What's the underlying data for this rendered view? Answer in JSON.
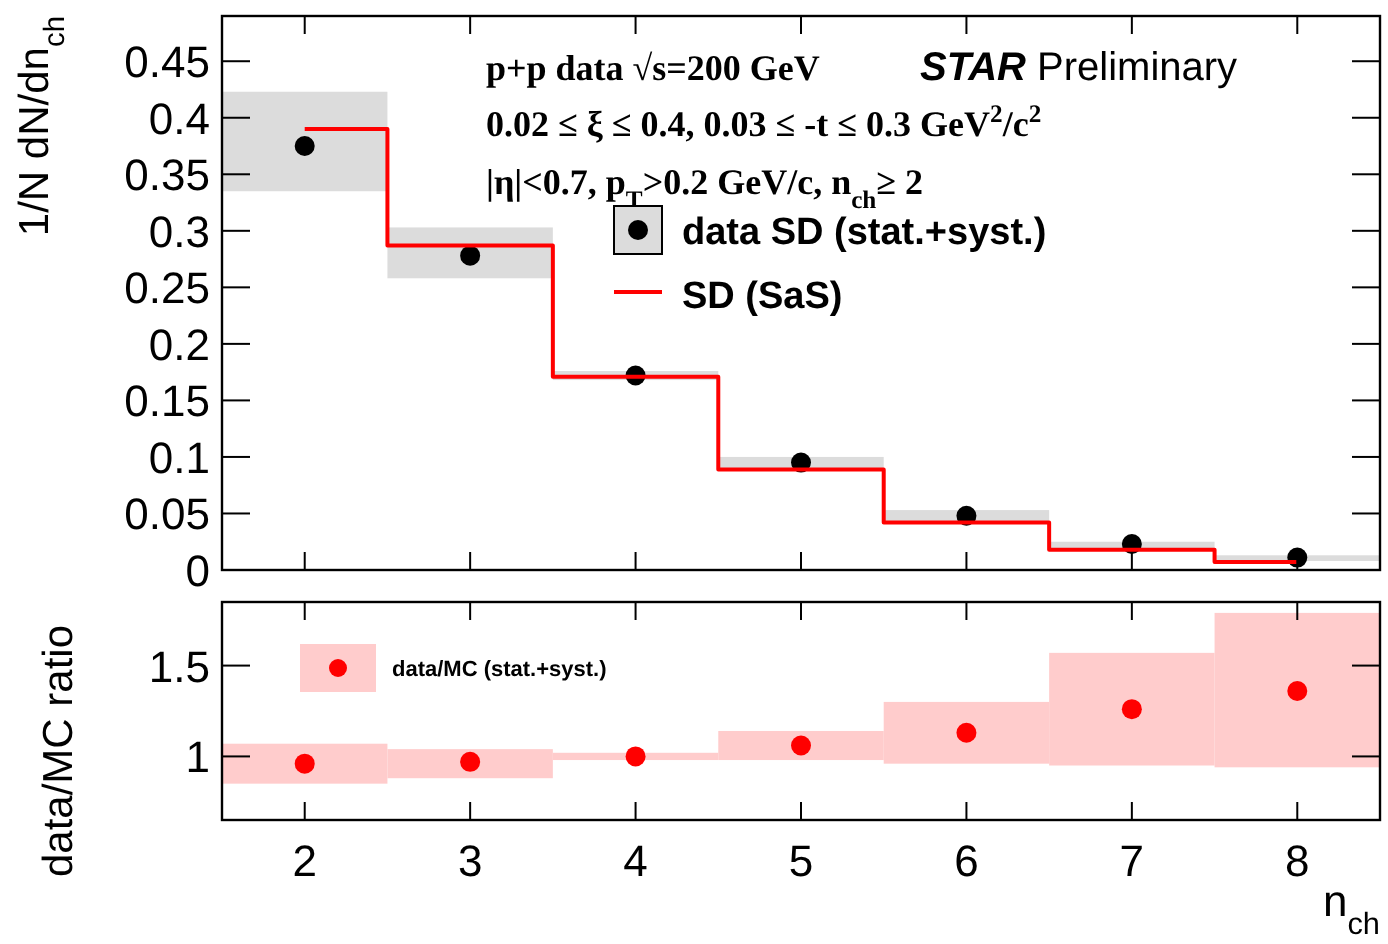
{
  "chart_data": [
    {
      "type": "scatter",
      "ylabel": "1/N dN/dn$_{ch}$",
      "annotations": [
        "p+p data   √s=200 GeV",
        "0.02  ≤  ξ  ≤ 0.4, 0.03  ≤ -t  ≤ 0.3 GeV$^{2}$/c$^{2}$",
        "|η|<0.7, p$_{T}$>0.2 GeV/c, n$_{ch}$≥ 2",
        "STAR Preliminary"
      ],
      "x": [
        2,
        3,
        4,
        5,
        6,
        7,
        8
      ],
      "xlim": [
        1.5,
        8.5
      ],
      "xticks": [
        2,
        3,
        4,
        5,
        6,
        7,
        8
      ],
      "ylim": [
        0,
        0.49
      ],
      "yticks": [
        0,
        0.05,
        0.1,
        0.15,
        0.2,
        0.25,
        0.3,
        0.35,
        0.4,
        0.45
      ],
      "tick_labels": "y",
      "legend": "top right",
      "grid": false,
      "series": [
        {
          "type": "bar",
          "color": "#dcdcdc",
          "base": [
            0.335,
            0.258,
            0.168,
            0.089,
            0.042,
            0.019,
            0.008
          ],
          "values": [
            0.088,
            0.045,
            0.008,
            0.011,
            0.011,
            0.006,
            0.005
          ]
        },
        {
          "name": "data SD (stat.+syst.)",
          "color": "#000000",
          "marker": "circle",
          "values": [
            0.375,
            0.278,
            0.172,
            0.095,
            0.048,
            0.023,
            0.011
          ]
        },
        {
          "type": "step",
          "name": "SD (SaS)",
          "color": "#ff0000",
          "values": [
            0.39,
            0.287,
            0.171,
            0.089,
            0.042,
            0.018,
            0.007
          ]
        }
      ]
    },
    {
      "type": "scatter",
      "xlabel": "n$_{ch}$",
      "ylabel": "data/MC ratio",
      "x": [
        2,
        3,
        4,
        5,
        6,
        7,
        8
      ],
      "xlim": [
        1.5,
        8.5
      ],
      "xticks": [
        2,
        3,
        4,
        5,
        6,
        7,
        8
      ],
      "ylim": [
        0.65,
        1.85
      ],
      "yticks": [
        1,
        1.5
      ],
      "legend": "top left",
      "grid": false,
      "series": [
        {
          "type": "bar",
          "color": "#ffcccc",
          "base": [
            0.85,
            0.88,
            0.98,
            0.98,
            0.96,
            0.95,
            0.94
          ],
          "values": [
            0.22,
            0.16,
            0.04,
            0.16,
            0.34,
            0.62,
            0.85
          ]
        },
        {
          "name": "data/MC (stat.+syst.)",
          "color": "#ff0000",
          "marker": "circle",
          "values": [
            0.96,
            0.97,
            1.0,
            1.06,
            1.13,
            1.26,
            1.36
          ]
        }
      ]
    }
  ]
}
